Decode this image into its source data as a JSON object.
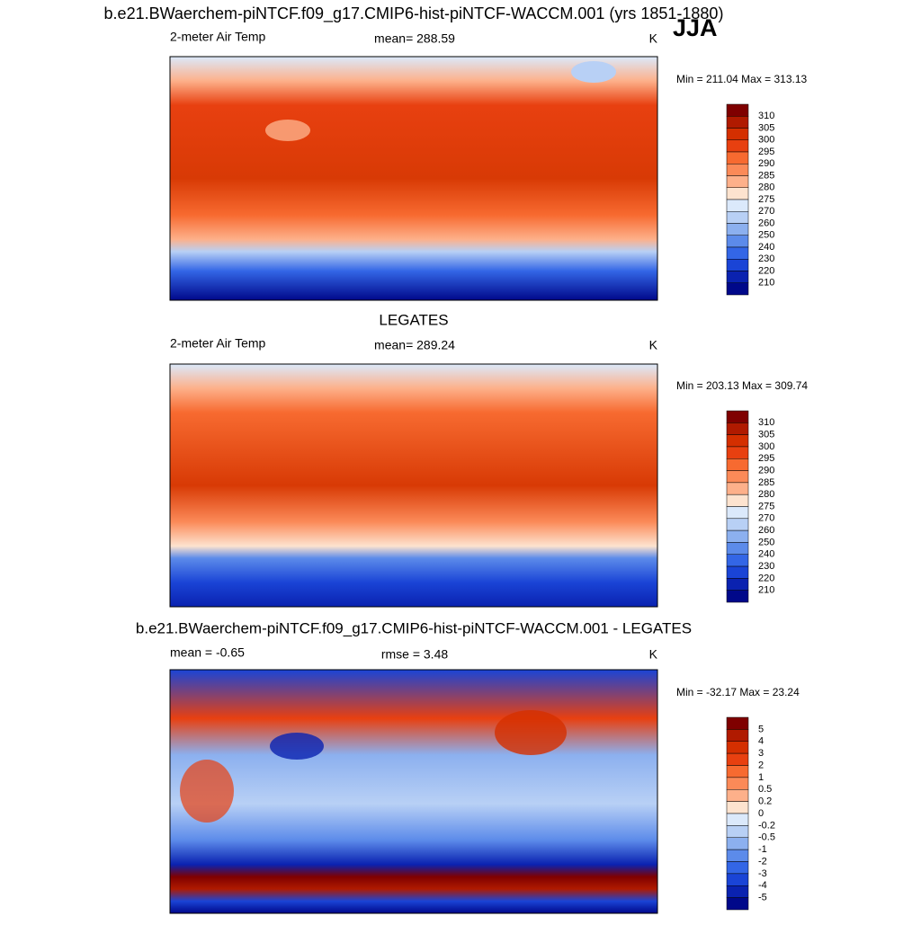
{
  "title": "b.e21.BWaerchem-piNTCF.f09_g17.CMIP6-hist-piNTCF-WACCM.001 (yrs 1851-1880)",
  "season": "JJA",
  "colorbar_colors": [
    "#7f0000",
    "#b01a00",
    "#d42f00",
    "#e84010",
    "#f76a30",
    "#fb8a58",
    "#fdb08a",
    "#fde3cf",
    "#dbe9fb",
    "#b8d0f5",
    "#8cb0ef",
    "#5c8bea",
    "#3366e6",
    "#1a44d6",
    "#0a22b0",
    "#00088a"
  ],
  "panels": [
    {
      "left_label": "2-meter Air Temp",
      "center_label": "mean= 288.59",
      "units": "K",
      "stats": "Min = 211.04 Max = 313.13",
      "colorbar_labels": [
        "310",
        "305",
        "300",
        "295",
        "290",
        "285",
        "280",
        "275",
        "270",
        "260",
        "250",
        "240",
        "230",
        "220",
        "210"
      ]
    },
    {
      "heading": "LEGATES",
      "left_label": "2-meter Air Temp",
      "center_label": "mean= 289.24",
      "units": "K",
      "stats": "Min = 203.13 Max = 309.74",
      "colorbar_labels": [
        "310",
        "305",
        "300",
        "295",
        "290",
        "285",
        "280",
        "275",
        "270",
        "260",
        "250",
        "240",
        "230",
        "220",
        "210"
      ]
    },
    {
      "heading": "b.e21.BWaerchem-piNTCF.f09_g17.CMIP6-hist-piNTCF-WACCM.001 - LEGATES",
      "left_label": "mean =  -0.65",
      "center_label": "rmse =   3.48",
      "units": "K",
      "stats": "Min = -32.17 Max =  23.24",
      "colorbar_labels": [
        "5",
        "4",
        "3",
        "2",
        "1",
        "0.5",
        "0.2",
        "0",
        "-0.2",
        "-0.5",
        "-1",
        "-2",
        "-3",
        "-4",
        "-5"
      ]
    }
  ]
}
